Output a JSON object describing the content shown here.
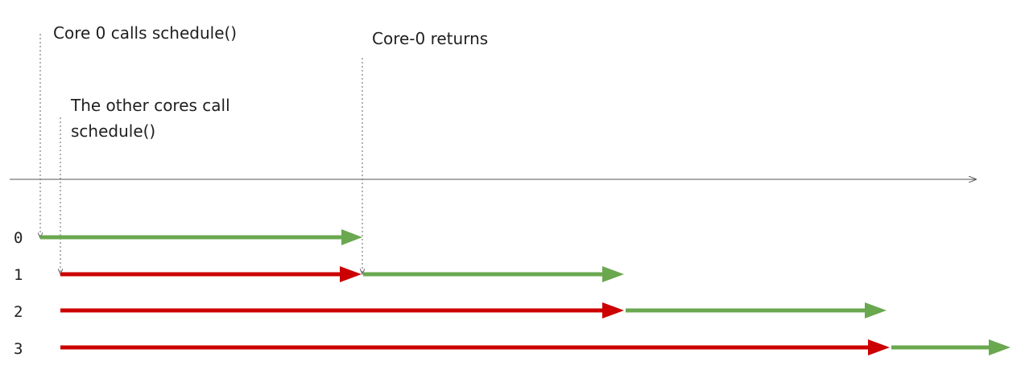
{
  "annotations": {
    "core0_calls": "Core 0 calls schedule()",
    "core0_returns": "Core-0 returns",
    "others_call_line1": "The other cores call",
    "others_call_line2": "schedule()"
  },
  "cores": [
    {
      "label": "0",
      "segments": [
        {
          "state": "running"
        }
      ]
    },
    {
      "label": "1",
      "segments": [
        {
          "state": "waiting"
        },
        {
          "state": "running"
        }
      ]
    },
    {
      "label": "2",
      "segments": [
        {
          "state": "waiting"
        },
        {
          "state": "running"
        }
      ]
    },
    {
      "label": "3",
      "segments": [
        {
          "state": "waiting"
        },
        {
          "state": "running"
        }
      ]
    }
  ],
  "colors": {
    "running": "#6aa84f",
    "waiting": "#cc0000",
    "axis": "#555555",
    "guide": "#666666"
  }
}
